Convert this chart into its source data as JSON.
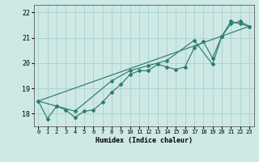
{
  "xlabel": "Humidex (Indice chaleur)",
  "bg_color": "#cde8e5",
  "grid_color": "#aed4cf",
  "line_color": "#2e7d6e",
  "xlim": [
    -0.5,
    23.5
  ],
  "ylim": [
    17.5,
    22.3
  ],
  "yticks": [
    18,
    19,
    20,
    21,
    22
  ],
  "xticks": [
    0,
    1,
    2,
    3,
    4,
    5,
    6,
    7,
    8,
    9,
    10,
    11,
    12,
    13,
    14,
    15,
    16,
    17,
    18,
    19,
    20,
    21,
    22,
    23
  ],
  "line1_x": [
    0,
    1,
    2,
    3,
    4,
    5,
    6,
    7,
    8,
    9,
    10,
    11,
    12,
    13,
    14,
    15,
    16,
    17,
    18,
    19,
    20,
    21,
    22,
    23
  ],
  "line1_y": [
    18.5,
    17.8,
    18.3,
    18.15,
    17.85,
    18.1,
    18.15,
    18.45,
    18.85,
    19.15,
    19.55,
    19.7,
    19.7,
    19.95,
    19.85,
    19.75,
    19.85,
    20.6,
    20.85,
    20.2,
    21.05,
    21.65,
    21.55,
    21.45
  ],
  "line2_x": [
    0,
    2,
    4,
    8,
    10,
    12,
    14,
    17,
    19,
    20,
    21,
    22,
    23
  ],
  "line2_y": [
    18.5,
    18.3,
    18.1,
    19.3,
    19.7,
    19.9,
    20.1,
    20.9,
    19.95,
    21.05,
    21.55,
    21.65,
    21.45
  ],
  "line3_x": [
    0,
    23
  ],
  "line3_y": [
    18.5,
    21.45
  ]
}
